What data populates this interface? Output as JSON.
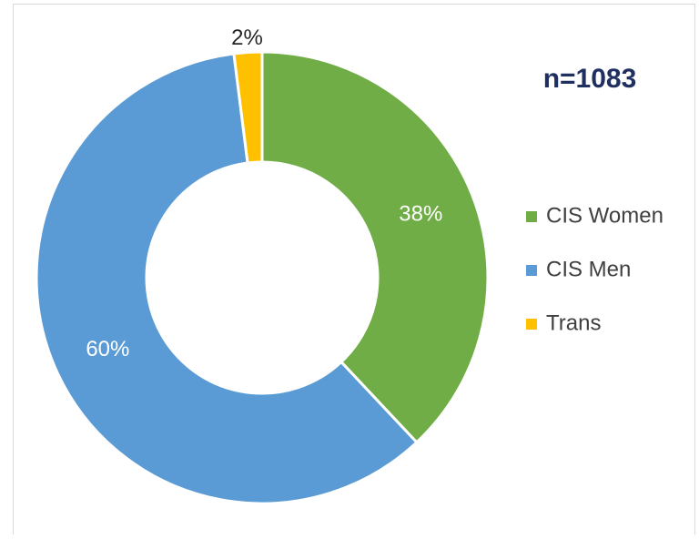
{
  "chart_data": {
    "type": "pie",
    "categories": [
      "CIS Women",
      "CIS Men",
      "Trans"
    ],
    "values": [
      38,
      60,
      2
    ],
    "value_labels": [
      "38%",
      "60%",
      "2%"
    ],
    "colors": [
      "#70ad47",
      "#5b9bd5",
      "#ffc000"
    ],
    "annotation": "n=1083",
    "legend": "right"
  }
}
